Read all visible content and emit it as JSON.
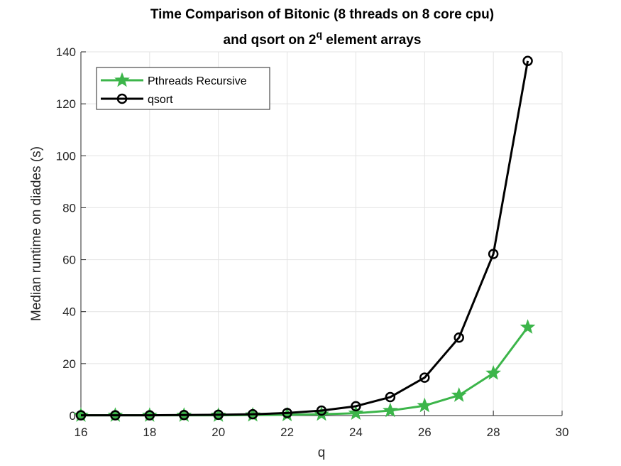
{
  "chart_data": {
    "type": "line",
    "title_line1": "Time Comparison of Bitonic (8 threads on 8 core cpu)",
    "title_line2_prefix": "and qsort on 2",
    "title_line2_sup": "q",
    "title_line2_suffix": " element arrays",
    "xlabel": "q",
    "ylabel": "Median runtime on diades (s)",
    "xlim": [
      16,
      30
    ],
    "ylim": [
      0,
      140
    ],
    "xticks": [
      16,
      18,
      20,
      22,
      24,
      26,
      28,
      30
    ],
    "yticks": [
      0,
      20,
      40,
      60,
      80,
      100,
      120,
      140
    ],
    "grid": true,
    "legend_position": "top-left",
    "x": [
      16,
      17,
      18,
      19,
      20,
      21,
      22,
      23,
      24,
      25,
      26,
      27,
      28,
      29
    ],
    "series": [
      {
        "name": "Pthreads Recursive",
        "color": "#3cb54a",
        "marker": "star",
        "values": [
          0.1,
          0.1,
          0.1,
          0.1,
          0.1,
          0.2,
          0.3,
          0.5,
          0.9,
          1.9,
          3.8,
          7.8,
          16.3,
          34.0
        ]
      },
      {
        "name": "qsort",
        "color": "#000000",
        "marker": "circle",
        "values": [
          0.1,
          0.1,
          0.1,
          0.2,
          0.3,
          0.5,
          1.0,
          1.9,
          3.6,
          7.1,
          14.6,
          30.0,
          62.2,
          136.5
        ]
      }
    ]
  }
}
